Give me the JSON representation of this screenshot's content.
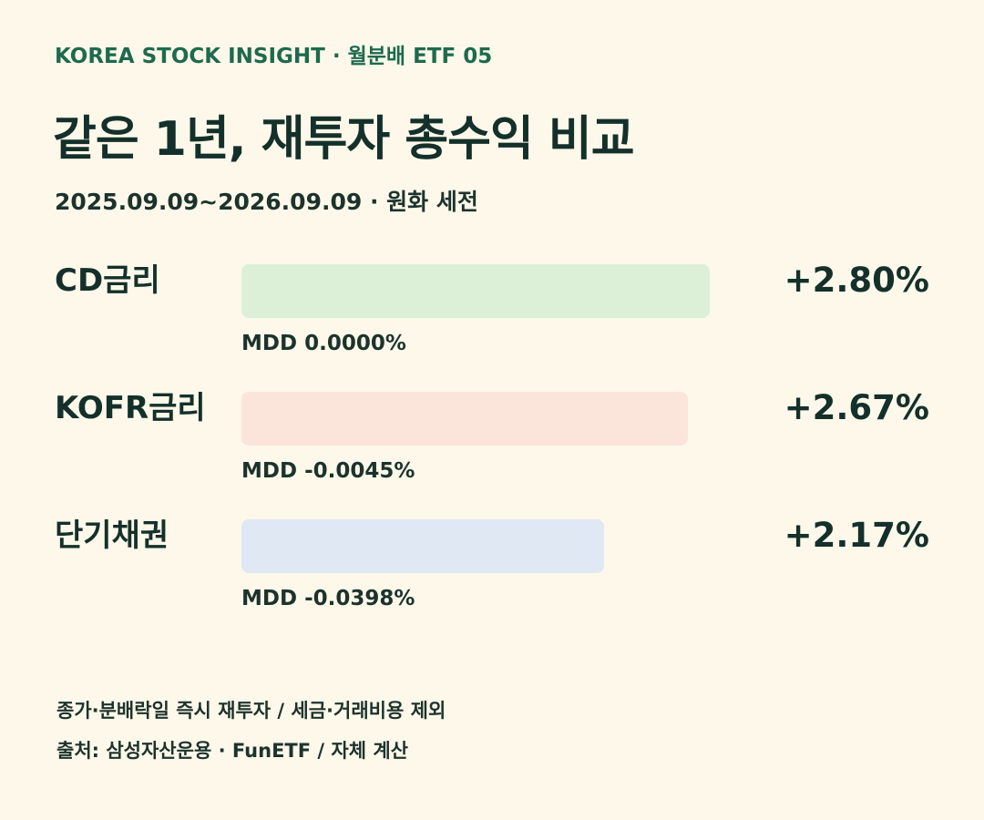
{
  "header": {
    "eyebrow": "KOREA STOCK INSIGHT · 월분배 ETF 05",
    "title": "같은 1년, 재투자 총수익 비교",
    "subtitle": "2025.09.09~2026.09.09 · 원화 세전"
  },
  "chart_data": {
    "type": "bar",
    "orientation": "horizontal",
    "title": "같은 1년, 재투자 총수익 비교",
    "subtitle": "2025.09.09~2026.09.09 · 원화 세전",
    "categories": [
      "CD금리",
      "KOFR금리",
      "단기채권"
    ],
    "values": [
      2.8,
      2.67,
      2.17
    ],
    "value_labels": [
      "+2.80%",
      "+2.67%",
      "+2.17%"
    ],
    "mdd_labels": [
      "MDD 0.0000%",
      "MDD -0.0045%",
      "MDD -0.0398%"
    ],
    "colors": [
      "#dcf0d8",
      "#fbe4da",
      "#dfe8f3"
    ],
    "xlim": [
      0,
      2.8
    ],
    "grid": false,
    "legend": "none"
  },
  "footer": {
    "note1": "종가·분배락일 즉시 재투자 / 세금·거래비용 제외",
    "note2": "출처: 삼성자산운용 · FunETF / 자체 계산"
  }
}
